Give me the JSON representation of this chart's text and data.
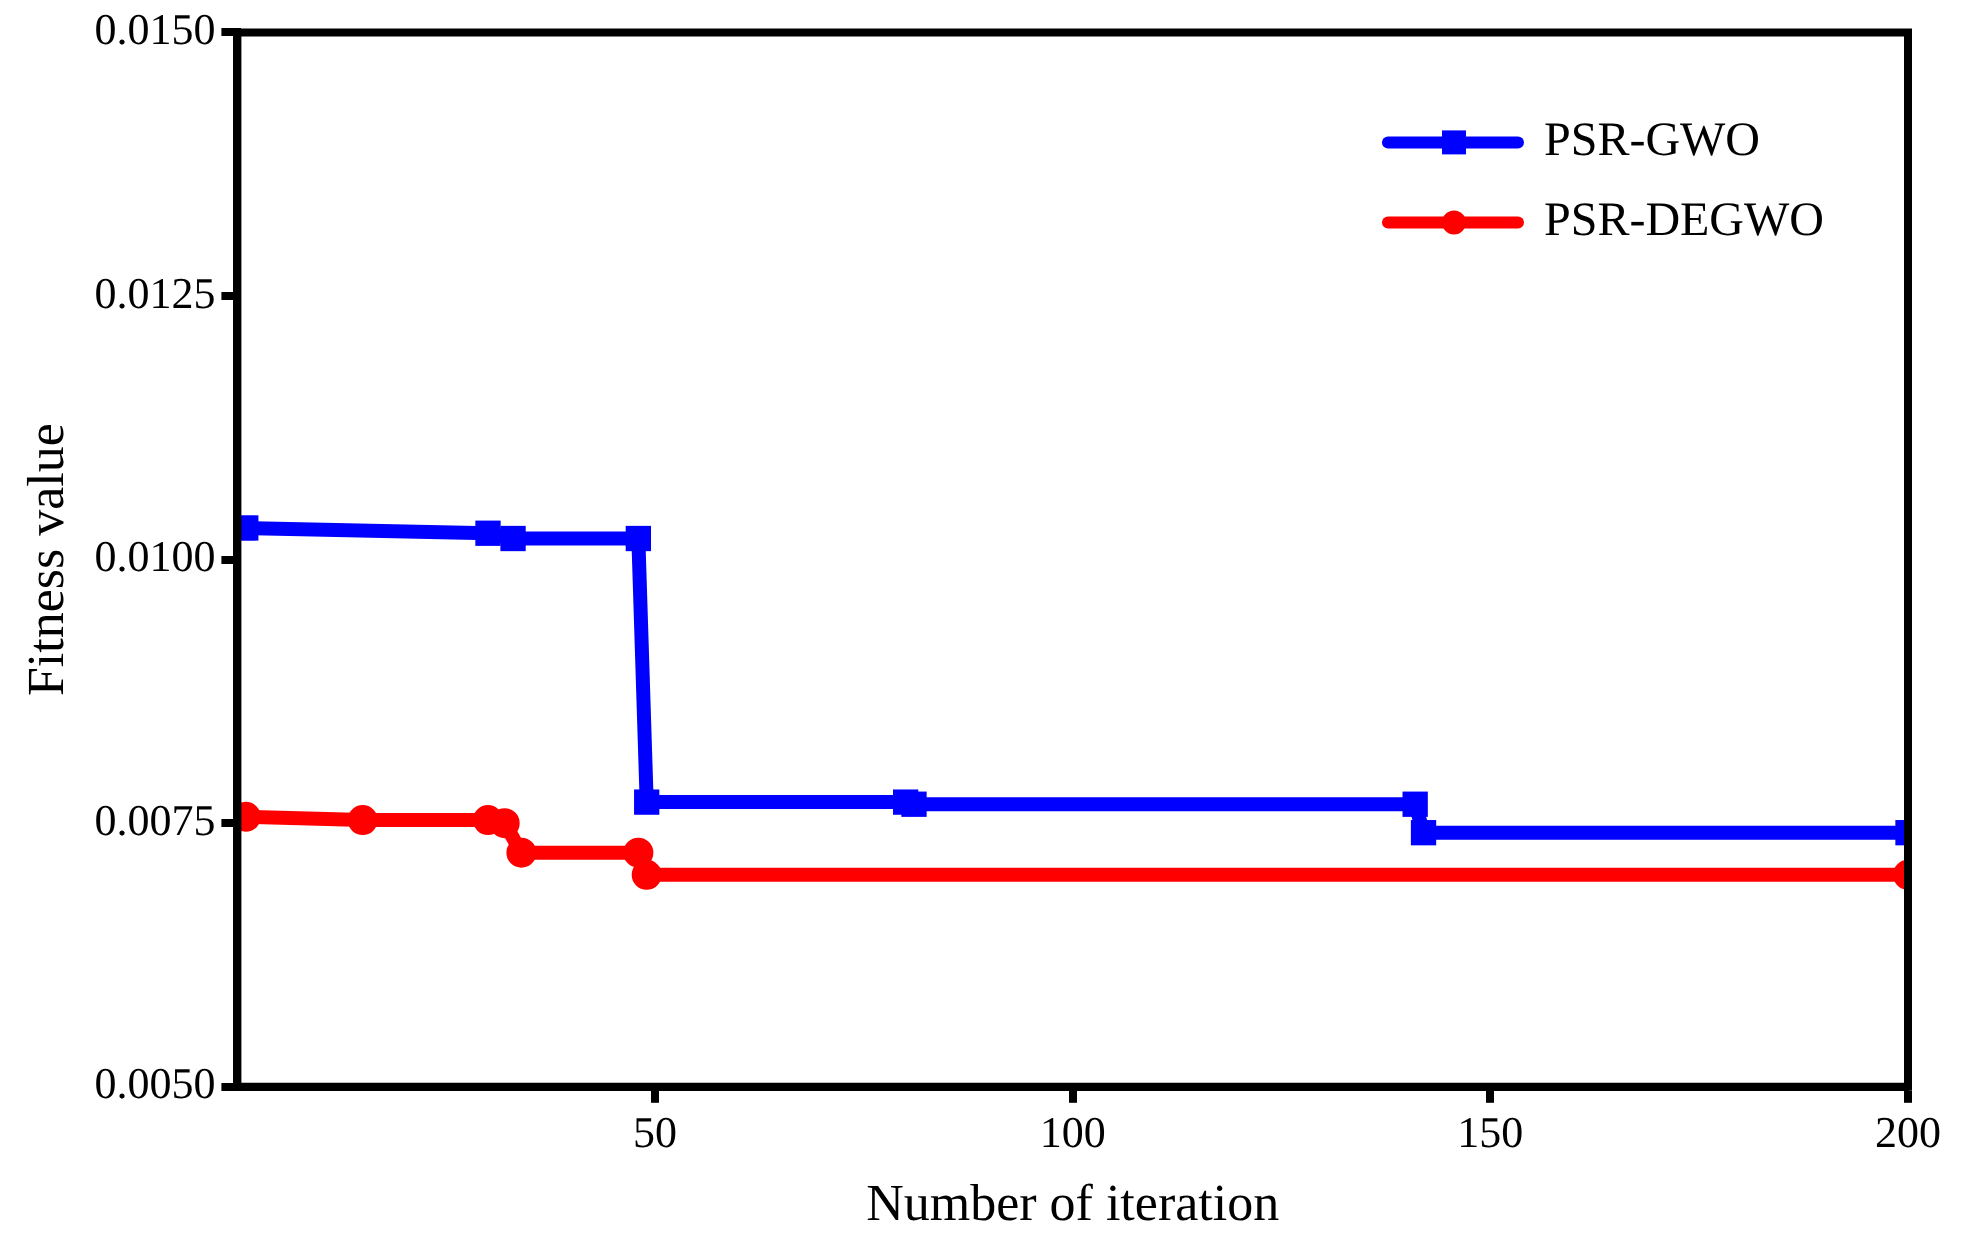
{
  "chart_data": {
    "type": "line",
    "xlabel": "Number of iteration",
    "ylabel": "Fitness value",
    "xlim": [
      0,
      200
    ],
    "xticks": [
      50,
      100,
      150,
      200
    ],
    "ylim": [
      0.005,
      0.015
    ],
    "yticks": [
      {
        "value": 0.005,
        "label": "0.0050"
      },
      {
        "value": 0.0075,
        "label": "0.0075"
      },
      {
        "value": 0.01,
        "label": "0.0100"
      },
      {
        "value": 0.0125,
        "label": "0.0125"
      },
      {
        "value": 0.015,
        "label": "0.0150"
      }
    ],
    "grid": false,
    "legend": "top right",
    "line_style": "solid",
    "series": [
      {
        "name": "PSR-GWO",
        "color": "#0000ff",
        "marker": "square",
        "x": [
          1,
          30,
          33,
          48,
          49,
          80,
          81,
          141,
          142,
          200
        ],
        "values": [
          0.0103,
          0.01025,
          0.0102,
          0.0102,
          0.0077,
          0.0077,
          0.00768,
          0.00768,
          0.00741,
          0.00741
        ]
      },
      {
        "name": "PSR-DEGWO",
        "color": "#ff0000",
        "marker": "circle",
        "x": [
          1,
          15,
          30,
          32,
          34,
          48,
          49,
          200
        ],
        "values": [
          0.00756,
          0.00753,
          0.00753,
          0.0075,
          0.00722,
          0.00722,
          0.00701,
          0.00701
        ]
      }
    ]
  }
}
